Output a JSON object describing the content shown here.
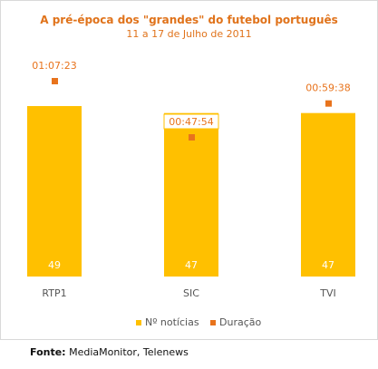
{
  "chart_data": {
    "type": "bar",
    "title": "A pré-época dos \"grandes\" do futebol português",
    "subtitle": "11 a 17 de Julho de 2011",
    "categories": [
      "RTP1",
      "SIC",
      "TVI"
    ],
    "series": [
      {
        "name": "Nº notícias",
        "type": "bar",
        "values": [
          49,
          47,
          47
        ],
        "labels": [
          "49",
          "47",
          "47"
        ],
        "color": "#ffc000"
      },
      {
        "name": "Duração",
        "type": "scatter",
        "values_seconds": [
          4043,
          2874,
          3578
        ],
        "labels": [
          "01:07:23",
          "00:47:54",
          "00:59:38"
        ],
        "color": "#e8731c"
      }
    ],
    "legend_position": "bottom",
    "grid": false
  },
  "footer": {
    "source_label": "Fonte:",
    "source_text": "MediaMonitor, Telenews"
  }
}
